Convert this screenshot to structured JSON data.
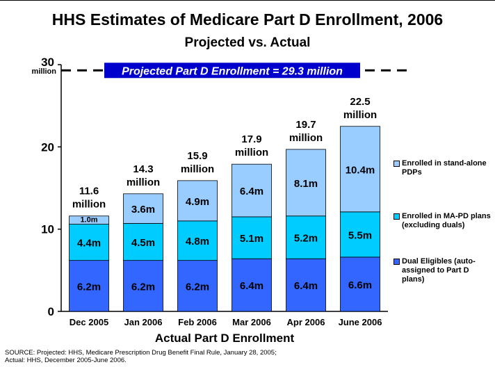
{
  "title": "HHS Estimates of Medicare Part D Enrollment, 2006",
  "subtitle": "Projected vs. Actual",
  "source_lines": [
    "SOURCE: Projected: HHS, Medicare Prescription Drug Benefit Final Rule, January 28, 2005;",
    "Actual: HHS, December 2005-June 2006."
  ],
  "colors": {
    "dual": "#3366FF",
    "mapd": "#00CCFF",
    "pdp": "#99CCFF",
    "banner": "#0000CC",
    "banner_text": "#FFFFFF"
  },
  "chart_data": {
    "type": "bar",
    "stacked": true,
    "xlabel": "Actual Part D Enrollment",
    "ylim": [
      0,
      30
    ],
    "yticks": [
      "0",
      "10",
      "20",
      "30"
    ],
    "ytick_note": "million",
    "categories": [
      "Dec 2005",
      "Jan 2006",
      "Feb 2006",
      "Mar 2006",
      "Apr 2006",
      "June 2006"
    ],
    "series": [
      {
        "name": "Dual Eligibles (auto-assigned to Part D plans)",
        "values": [
          6.2,
          6.2,
          6.2,
          6.4,
          6.4,
          6.6
        ],
        "labels": [
          "6.2m",
          "6.2m",
          "6.2m",
          "6.4m",
          "6.4m",
          "6.6m"
        ]
      },
      {
        "name": "Enrolled in MA-PD plans (excluding duals)",
        "values": [
          4.4,
          4.5,
          4.8,
          5.1,
          5.2,
          5.5
        ],
        "labels": [
          "4.4m",
          "4.5m",
          "4.8m",
          "5.1m",
          "5.2m",
          "5.5m"
        ]
      },
      {
        "name": "Enrolled in stand-alone PDPs",
        "values": [
          1.0,
          3.6,
          4.9,
          6.4,
          8.1,
          10.4
        ],
        "labels": [
          "1.0m",
          "3.6m",
          "4.9m",
          "6.4m",
          "8.1m",
          "10.4m"
        ]
      }
    ],
    "totals": [
      11.6,
      14.3,
      15.9,
      17.9,
      19.7,
      22.5
    ],
    "total_labels": [
      "11.6",
      "14.3",
      "15.9",
      "17.9",
      "19.7",
      "22.5"
    ],
    "total_unit": "million",
    "projected": {
      "value": 29.3,
      "label": "Projected Part D Enrollment = 29.3 million"
    },
    "grid": false,
    "legend_position": "right"
  }
}
